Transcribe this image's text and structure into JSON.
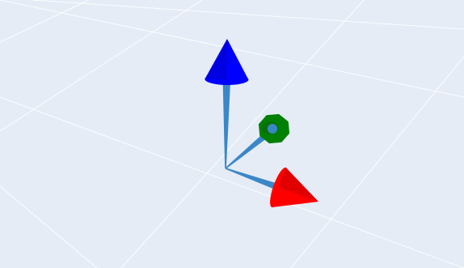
{
  "chart_data": {
    "type": "cone",
    "title": "",
    "xlabel": "",
    "ylabel": "",
    "zlabel": "",
    "grid": true,
    "legend": "none",
    "background_color": "#e5ecf6",
    "grid_color": "#ffffff",
    "shaft_color": "#3a87c8",
    "series": [
      {
        "vector": [
          1,
          0,
          0
        ],
        "color": "#ff0000"
      },
      {
        "vector": [
          0,
          1,
          0
        ],
        "color": "#008000"
      },
      {
        "vector": [
          0,
          0,
          1
        ],
        "color": "#0000ff"
      }
    ]
  }
}
